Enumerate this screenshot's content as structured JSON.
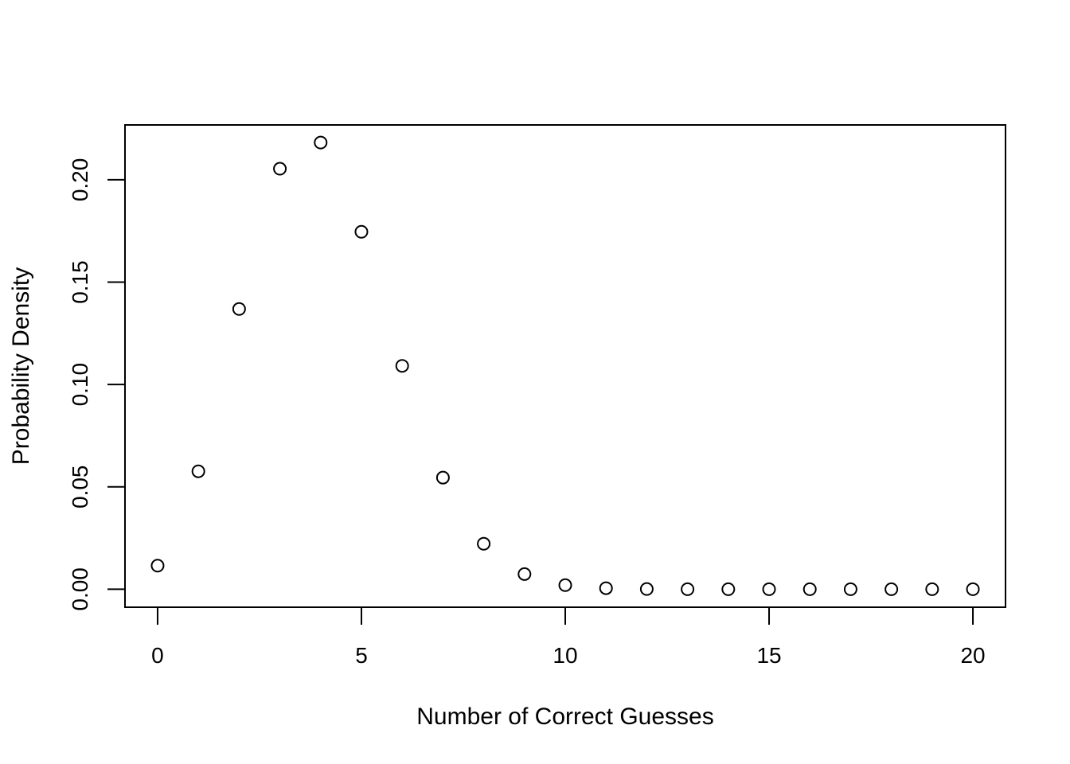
{
  "chart_data": {
    "type": "scatter",
    "title": "",
    "xlabel": "Number of Correct Guesses",
    "ylabel": "Probability Density",
    "xlim": [
      -0.8,
      20.8
    ],
    "ylim": [
      -0.0088,
      0.2268
    ],
    "x_ticks": [
      0,
      5,
      10,
      15,
      20
    ],
    "x_tick_labels": [
      "0",
      "5",
      "10",
      "15",
      "20"
    ],
    "y_ticks": [
      0,
      0.05,
      0.1,
      0.15,
      0.2
    ],
    "y_tick_labels": [
      "0.00",
      "0.05",
      "0.10",
      "0.15",
      "0.20"
    ],
    "grid": false,
    "marker": "open-circle",
    "series": [
      {
        "x": [
          0,
          1,
          2,
          3,
          4,
          5,
          6,
          7,
          8,
          9,
          10,
          11,
          12,
          13,
          14,
          15,
          16,
          17,
          18,
          19,
          20
        ],
        "y": [
          0.0115,
          0.0576,
          0.1369,
          0.2054,
          0.2182,
          0.1746,
          0.1091,
          0.0545,
          0.0222,
          0.0074,
          0.002,
          0.0005,
          0.0001,
          0.0,
          0.0,
          0.0,
          0.0,
          0.0,
          0.0,
          0.0,
          0.0
        ]
      }
    ]
  }
}
